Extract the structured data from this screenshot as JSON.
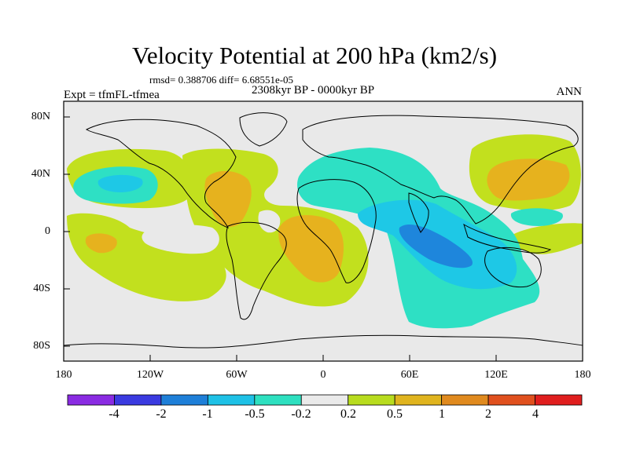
{
  "title": "Velocity Potential at 200 hPa (km2/s)",
  "stats": "rmsd= 0.388706 diff= 6.68551e-05",
  "experiment": "Expt = tfmFL-tfmea",
  "period": "2308kyr BP - 0000kyr BP",
  "season": "ANN",
  "lat_labels": [
    "80N",
    "40N",
    "0",
    "40S",
    "80S"
  ],
  "lon_labels": [
    "180",
    "120W",
    "60W",
    "0",
    "60E",
    "120E",
    "180"
  ],
  "colorbar": {
    "labels": [
      "-4",
      "-2",
      "-1",
      "-0.5",
      "-0.2",
      "0.2",
      "0.5",
      "1",
      "2",
      "4"
    ],
    "colors": [
      "#8a2be2",
      "#3a3ae0",
      "#1e7fd8",
      "#1ec1e6",
      "#2ee0c0",
      "#eaeaea",
      "#b8dc1e",
      "#e0b41e",
      "#e08a1e",
      "#e0501e",
      "#e01e1e"
    ]
  },
  "field_colors": {
    "neutral": "#e9e9e9",
    "pos_weak": "#c2e01e",
    "pos_mod": "#e6b21e",
    "neg_weak": "#2ee0c4",
    "neg_mod": "#1ec8e6",
    "neg_strong": "#1e86dc"
  }
}
